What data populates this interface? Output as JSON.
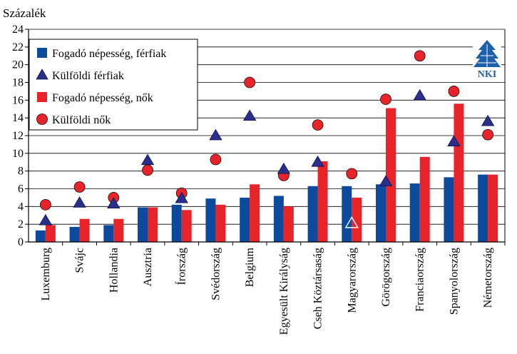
{
  "chart_data": {
    "type": "bar",
    "ylabel": "Százalék",
    "ylim": [
      0,
      24
    ],
    "yticks": [
      0,
      2,
      4,
      6,
      8,
      10,
      12,
      14,
      16,
      18,
      20,
      22,
      24
    ],
    "grid": true,
    "legend_position": "top-left",
    "categories": [
      "Luxemburg",
      "Svájc",
      "Hollandia",
      "Ausztria",
      "Írország",
      "Svédország",
      "Belgium",
      "Egyesült Királyság",
      "Cseh Köztársaság",
      "Magyarország",
      "Görögország",
      "Franciaország",
      "Spanyolország",
      "Németország"
    ],
    "series": [
      {
        "name": "Fogadó népesség, férfiak",
        "kind": "bar",
        "color": "#0b4a9c",
        "values": [
          1.3,
          1.7,
          1.9,
          3.9,
          4.2,
          4.9,
          5.0,
          5.2,
          6.3,
          6.3,
          6.5,
          6.6,
          7.3,
          7.6
        ]
      },
      {
        "name": "Külföldi férfiak",
        "kind": "triangle",
        "color": "#2b2f8c",
        "values": [
          2.4,
          4.4,
          4.3,
          9.2,
          4.9,
          12.0,
          14.2,
          8.2,
          9.0,
          2.1,
          6.8,
          16.5,
          11.3,
          13.6
        ]
      },
      {
        "name": "Fogadó népesség, nők",
        "kind": "bar",
        "color": "#e8232a",
        "values": [
          1.9,
          2.6,
          2.6,
          3.9,
          3.6,
          4.2,
          6.5,
          4.0,
          9.1,
          5.0,
          15.1,
          9.6,
          15.6,
          7.6
        ]
      },
      {
        "name": "Külföldi nők",
        "kind": "circle",
        "color": "#e8232a",
        "values": [
          4.2,
          6.2,
          5.0,
          8.1,
          5.5,
          9.3,
          18.0,
          7.5,
          13.2,
          7.7,
          16.1,
          21.0,
          17.0,
          12.1
        ]
      }
    ],
    "hollow_triangle_category": "Magyarország"
  },
  "logo": {
    "text": "NKI",
    "color": "#1d5fa8"
  }
}
